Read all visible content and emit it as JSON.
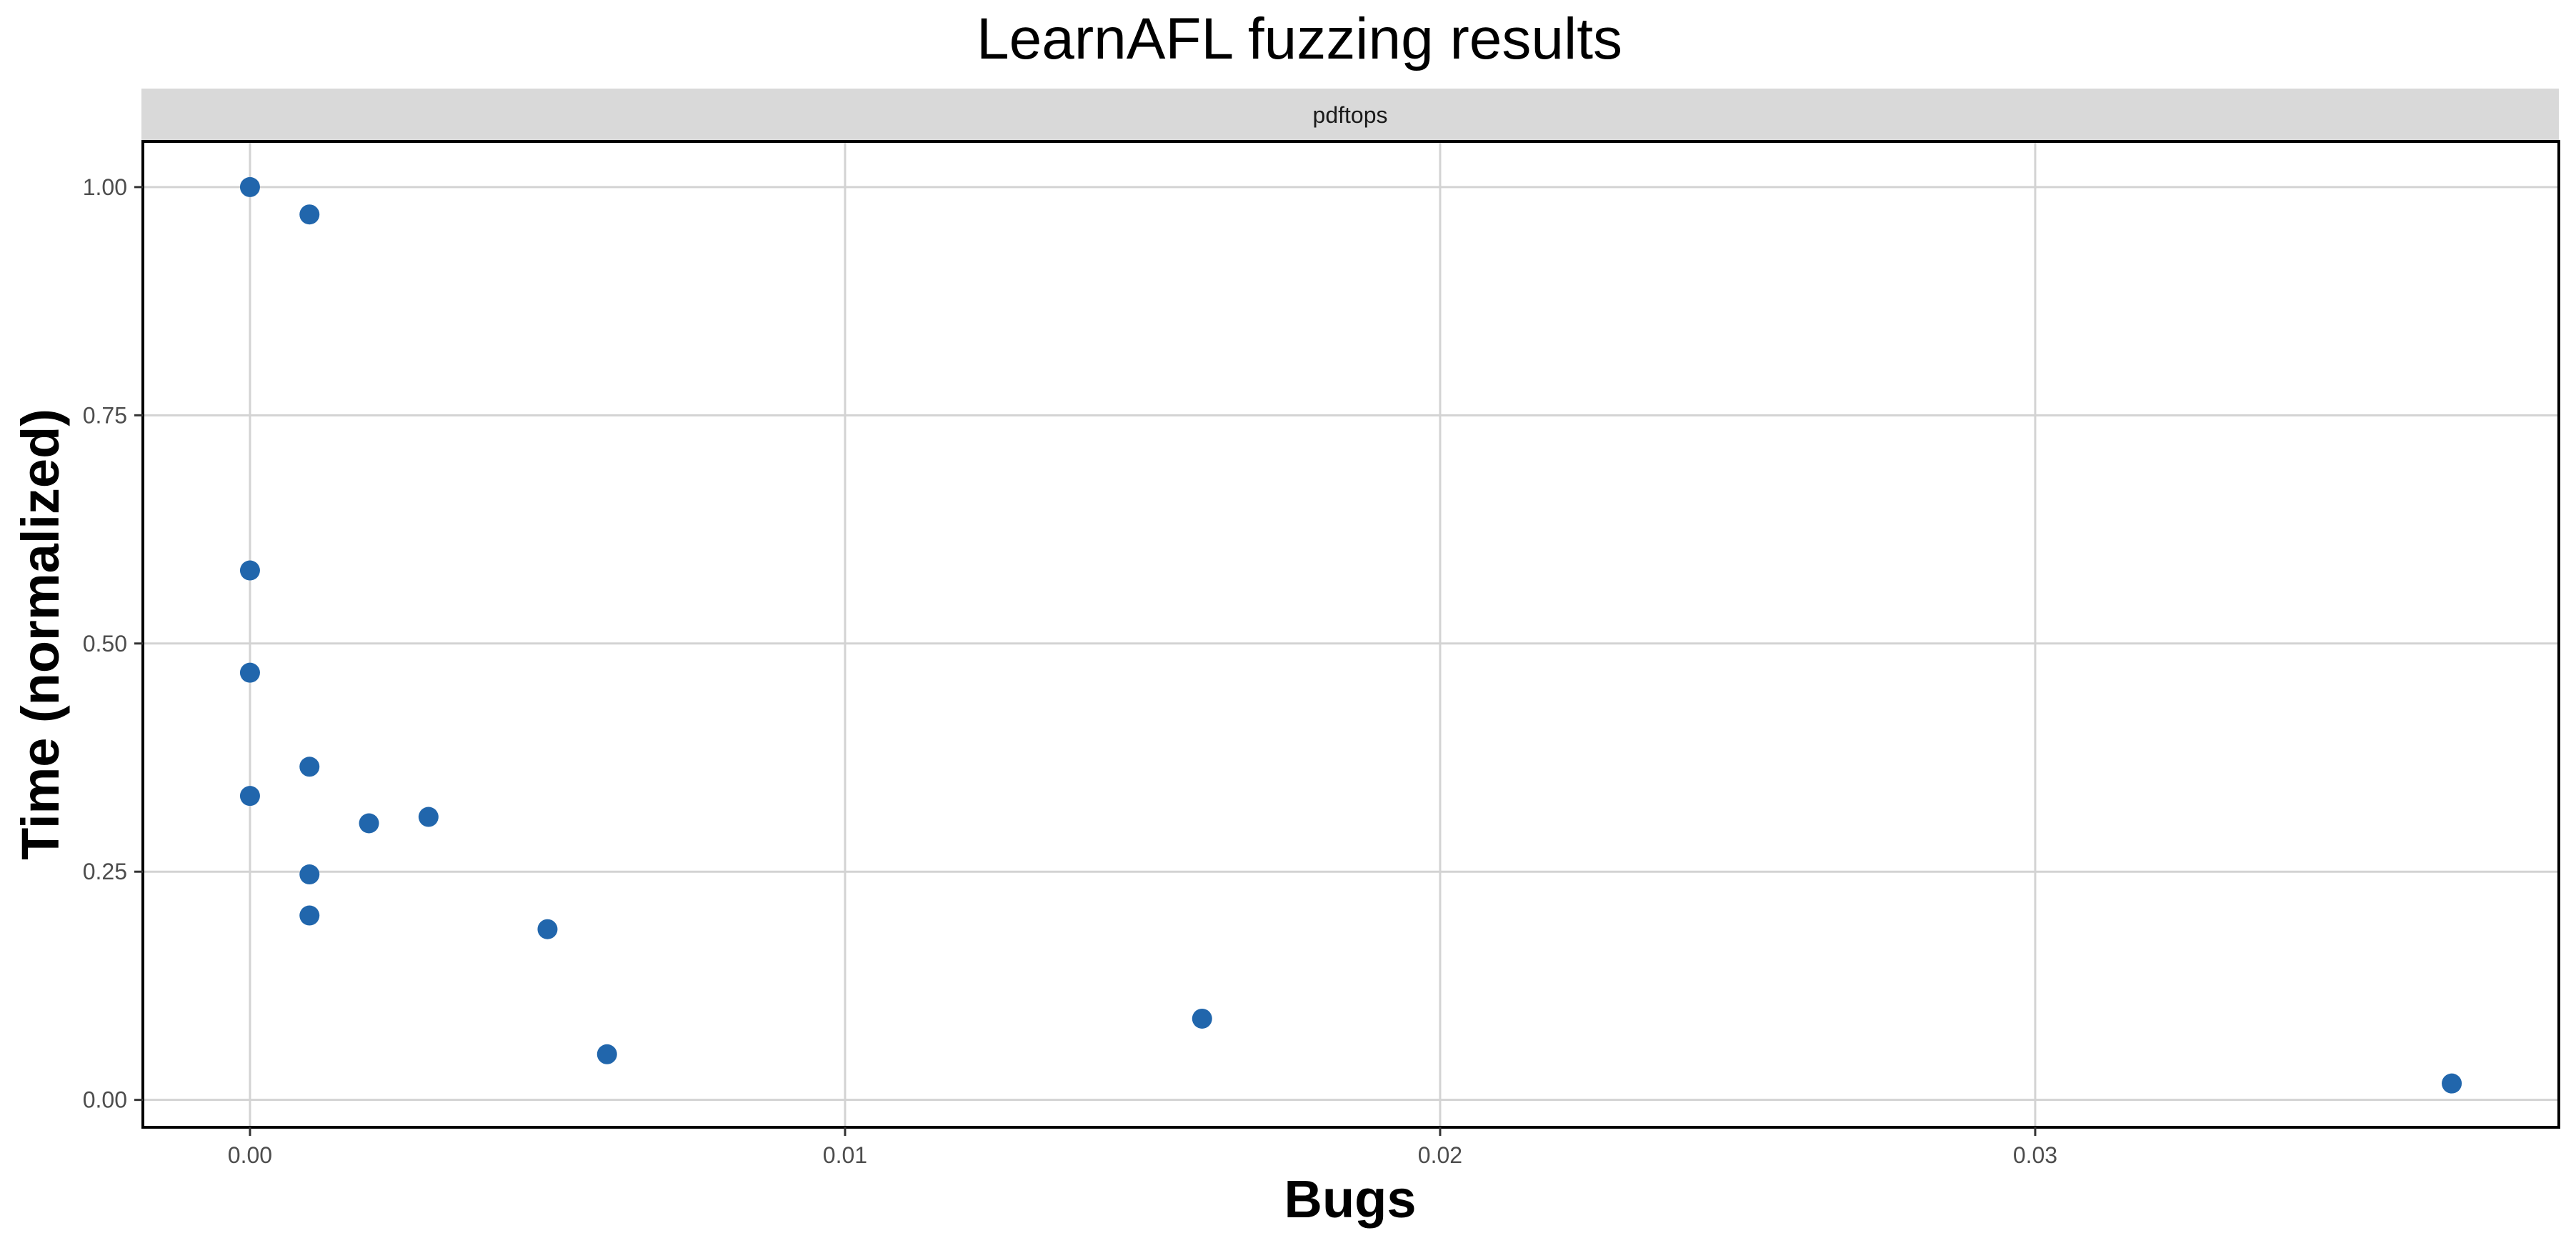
{
  "chart_data": {
    "type": "scatter",
    "title": "LearnAFL fuzzing results",
    "facet": "pdftops",
    "xlabel": "Bugs",
    "ylabel": "Time (normalized)",
    "xlim": [
      -0.0018,
      0.0388
    ],
    "ylim": [
      -0.03,
      1.05
    ],
    "x_ticks": [
      0.0,
      0.01,
      0.02,
      0.03
    ],
    "x_tick_labels": [
      "0.00",
      "0.01",
      "0.02",
      "0.03"
    ],
    "y_ticks": [
      0.0,
      0.25,
      0.5,
      0.75,
      1.0
    ],
    "y_tick_labels": [
      "0.00",
      "0.25",
      "0.50",
      "0.75",
      "1.00"
    ],
    "grid": true,
    "point_color": "#2166ac",
    "points": [
      {
        "x": 0.0,
        "y": 1.0
      },
      {
        "x": 0.001,
        "y": 0.97
      },
      {
        "x": 0.0,
        "y": 0.58
      },
      {
        "x": 0.0,
        "y": 0.468
      },
      {
        "x": 0.001,
        "y": 0.365
      },
      {
        "x": 0.0,
        "y": 0.333
      },
      {
        "x": 0.003,
        "y": 0.31
      },
      {
        "x": 0.002,
        "y": 0.303
      },
      {
        "x": 0.001,
        "y": 0.247
      },
      {
        "x": 0.001,
        "y": 0.202
      },
      {
        "x": 0.005,
        "y": 0.187
      },
      {
        "x": 0.016,
        "y": 0.089
      },
      {
        "x": 0.006,
        "y": 0.05
      },
      {
        "x": 0.037,
        "y": 0.018
      }
    ]
  }
}
